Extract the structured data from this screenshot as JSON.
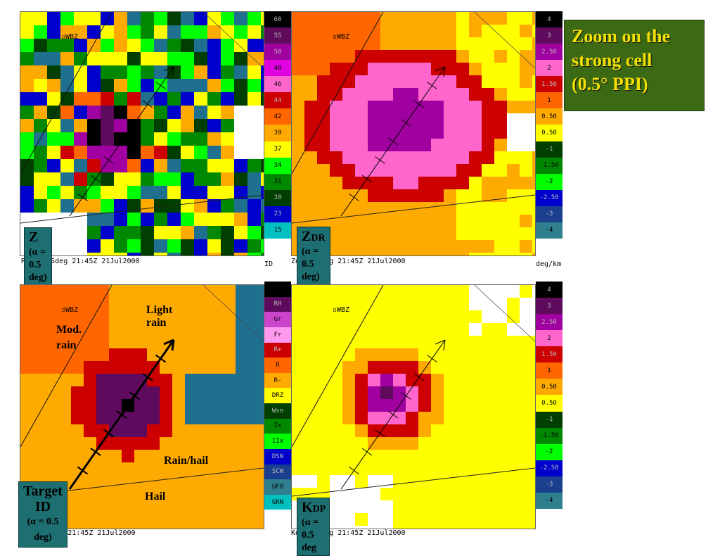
{
  "title_box": {
    "lines": [
      "Zoom on the",
      "strong cell",
      "(0.5° PPI)"
    ]
  },
  "station_label": "WBZ",
  "panels": [
    {
      "id": "refl",
      "label_main": "Z",
      "label_rest": " (α = 0.5 deg)",
      "caption": "REFP 0.5deg 21:45Z 21Jul2000",
      "unit": "ID",
      "colorbar": [
        "60",
        "55",
        "50",
        "48",
        "46",
        "44",
        "42",
        "39",
        "37",
        "34",
        "31",
        "28",
        "23",
        "15"
      ],
      "colorbar_colors": [
        "#000000",
        "#5e0b5e",
        "#a000a0",
        "#e000e0",
        "#ff66cc",
        "#cc0000",
        "#ff6600",
        "#ffaa00",
        "#ffff00",
        "#00ff00",
        "#008800",
        "#003f00",
        "#0000cc",
        "#00c0c0"
      ]
    },
    {
      "id": "zdr",
      "label_main": "Z",
      "label_sub": "DR",
      "label_rest": " (α = 0.5 deg)",
      "caption": "Zdr 0.5deg 21:45Z 21Jul2000",
      "unit": "deg/km",
      "colorbar": [
        "4",
        "3",
        "2.50",
        "2",
        "1.50",
        "1",
        "0.50",
        "0.50",
        "-1",
        "-1.50",
        "-2",
        "-2.50",
        "-3",
        "-4"
      ],
      "colorbar_colors": [
        "#000000",
        "#5e0b5e",
        "#a000a0",
        "#ff66cc",
        "#cc0000",
        "#ff6600",
        "#ffaa00",
        "#ffff00",
        "#003f00",
        "#008800",
        "#00ff00",
        "#0000cc",
        "#1a3f8f",
        "#2f7f8f"
      ]
    },
    {
      "id": "tid",
      "label_main": "Target ID",
      "label_rest": "(α = 0.5 deg)",
      "caption": "tid 0.5deg 21:45Z 21Jul2000",
      "unit": "",
      "colorbar": [
        "",
        "RH",
        "Gr",
        "Fr",
        "R+",
        "R",
        "R-",
        "DRZ",
        "Wsn",
        "Ix",
        "IIx",
        "DSN",
        "SCW",
        "UFO",
        "GRN"
      ],
      "colorbar_colors": [
        "#000000",
        "#5e0b5e",
        "#cc44cc",
        "#ff99ee",
        "#cc0000",
        "#ff6600",
        "#ffaa00",
        "#ffff00",
        "#003f00",
        "#008800",
        "#00ff00",
        "#0000cc",
        "#1a3f8f",
        "#2f7f8f",
        "#00c0c0"
      ]
    },
    {
      "id": "kdp",
      "label_main": "K",
      "label_sub": "DP",
      "label_rest": " (α = 0.5 deg",
      "caption": "Kdp 0.5deg 21:45Z 21Jul2000",
      "unit": "",
      "colorbar": [
        "4",
        "3",
        "2.50",
        "2",
        "1.50",
        "1",
        "0.50",
        "0.50",
        "-1",
        "-1.50",
        "-2",
        "-2.50",
        "-3",
        "-4"
      ],
      "colorbar_colors": [
        "#000000",
        "#5e0b5e",
        "#a000a0",
        "#ff66cc",
        "#cc0000",
        "#ff6600",
        "#ffaa00",
        "#ffff00",
        "#003f00",
        "#008800",
        "#00ff00",
        "#0000cc",
        "#1a3f8f",
        "#2f7f8f"
      ]
    }
  ],
  "annotations": {
    "light_rain": "Light rain",
    "mod_rain_1": "Mod.",
    "mod_rain_2": "rain",
    "rain_hail": "Rain/hail",
    "hail": "Hail"
  }
}
